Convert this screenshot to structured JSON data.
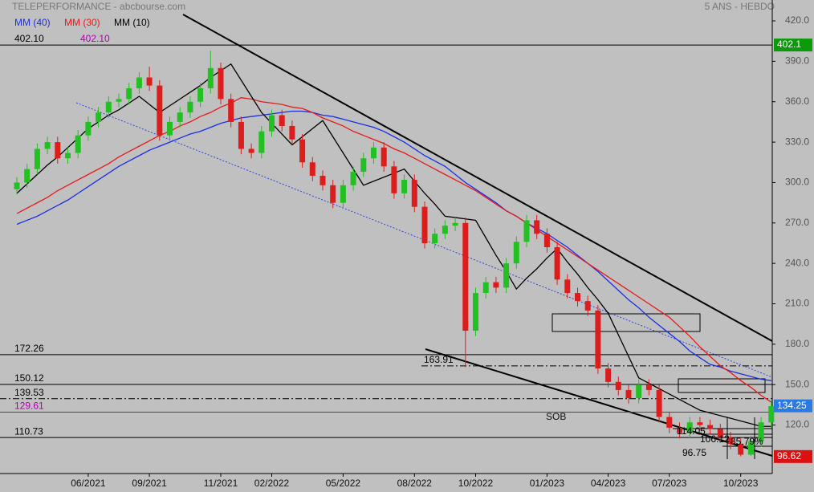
{
  "chart_data": {
    "type": "candlestick",
    "title": "TELEPERFORMANCE - abcbourse.com",
    "subtitle": "5 ANS - HEBDO",
    "ylim": [
      84,
      435.5
    ],
    "yticks": [
      {
        "value": 120,
        "label": "120.0"
      },
      {
        "value": 150,
        "label": "150.0"
      },
      {
        "value": 180,
        "label": "180.0"
      },
      {
        "value": 210,
        "label": "210.0"
      },
      {
        "value": 240,
        "label": "240.0"
      },
      {
        "value": 270,
        "label": "270.0"
      },
      {
        "value": 300,
        "label": "300.0"
      },
      {
        "value": 330,
        "label": "330.0"
      },
      {
        "value": 360,
        "label": "360.0"
      },
      {
        "value": 390,
        "label": "390.0"
      },
      {
        "value": 420,
        "label": "420.0"
      }
    ],
    "categories": [
      null,
      null,
      null,
      null,
      null,
      null,
      null,
      "06/2021",
      null,
      null,
      null,
      null,
      null,
      "09/2021",
      null,
      null,
      null,
      null,
      null,
      null,
      "11/2021",
      null,
      null,
      null,
      null,
      "02/2022",
      null,
      null,
      null,
      null,
      null,
      null,
      "05/2022",
      null,
      null,
      null,
      null,
      null,
      null,
      "08/2022",
      null,
      null,
      null,
      null,
      null,
      "10/2022",
      null,
      null,
      null,
      null,
      null,
      null,
      "01/2023",
      null,
      null,
      null,
      null,
      null,
      "04/2023",
      null,
      null,
      null,
      null,
      null,
      "07/2023",
      null,
      null,
      null,
      null,
      null,
      null,
      "10/2023",
      null,
      null,
      null
    ],
    "up_color": "#22c022",
    "down_color": "#dd1c1c",
    "ohlc": [
      [
        295,
        304,
        291,
        300
      ],
      [
        300,
        314,
        296,
        310
      ],
      [
        310,
        329,
        306,
        325
      ],
      [
        325,
        334,
        321,
        330
      ],
      [
        330,
        334,
        314,
        318
      ],
      [
        318,
        326,
        314,
        322
      ],
      [
        322,
        339,
        318,
        335
      ],
      [
        335,
        349,
        331,
        345
      ],
      [
        345,
        356,
        341,
        352
      ],
      [
        352,
        364,
        348,
        360
      ],
      [
        360,
        366,
        356,
        362
      ],
      [
        362,
        374,
        358,
        370
      ],
      [
        370,
        382,
        366,
        378
      ],
      [
        378,
        386,
        368,
        372
      ],
      [
        372,
        376,
        331,
        335
      ],
      [
        335,
        349,
        331,
        345
      ],
      [
        345,
        356,
        341,
        352
      ],
      [
        352,
        364,
        348,
        360
      ],
      [
        360,
        374,
        356,
        370
      ],
      [
        370,
        398,
        366,
        385
      ],
      [
        385,
        389,
        358,
        362
      ],
      [
        362,
        366,
        341,
        345
      ],
      [
        345,
        349,
        321,
        325
      ],
      [
        325,
        329,
        318,
        322
      ],
      [
        322,
        342,
        318,
        338
      ],
      [
        338,
        354,
        334,
        350
      ],
      [
        350,
        354,
        338,
        342
      ],
      [
        342,
        346,
        328,
        332
      ],
      [
        332,
        336,
        311,
        315
      ],
      [
        315,
        319,
        301,
        305
      ],
      [
        305,
        309,
        294,
        298
      ],
      [
        298,
        302,
        281,
        285
      ],
      [
        285,
        302,
        281,
        298
      ],
      [
        298,
        312,
        294,
        308
      ],
      [
        308,
        322,
        304,
        318
      ],
      [
        318,
        330,
        314,
        326
      ],
      [
        326,
        330,
        308,
        312
      ],
      [
        312,
        316,
        288,
        292
      ],
      [
        292,
        306,
        288,
        302
      ],
      [
        302,
        306,
        278,
        282
      ],
      [
        282,
        286,
        251,
        255
      ],
      [
        255,
        266,
        251,
        262
      ],
      [
        262,
        272,
        258,
        268
      ],
      [
        268,
        274,
        264,
        270
      ],
      [
        270,
        274,
        163,
        190
      ],
      [
        190,
        222,
        186,
        218
      ],
      [
        218,
        230,
        214,
        226
      ],
      [
        226,
        230,
        218,
        222
      ],
      [
        222,
        244,
        218,
        240
      ],
      [
        240,
        260,
        236,
        256
      ],
      [
        256,
        276,
        252,
        272
      ],
      [
        272,
        276,
        258,
        262
      ],
      [
        262,
        266,
        248,
        252
      ],
      [
        252,
        256,
        224,
        228
      ],
      [
        228,
        232,
        214,
        218
      ],
      [
        218,
        222,
        208,
        212
      ],
      [
        212,
        216,
        201,
        205
      ],
      [
        205,
        209,
        158,
        162
      ],
      [
        162,
        166,
        148,
        152
      ],
      [
        152,
        156,
        142,
        146
      ],
      [
        146,
        150,
        136,
        140
      ],
      [
        140,
        154,
        136,
        150
      ],
      [
        150,
        154,
        142,
        146
      ],
      [
        146,
        150,
        122,
        126
      ],
      [
        126,
        130,
        114,
        118
      ],
      [
        118,
        122,
        110,
        114
      ],
      [
        114,
        126,
        110,
        122
      ],
      [
        122,
        126,
        116,
        120
      ],
      [
        120,
        124,
        113,
        117
      ],
      [
        117,
        121,
        107,
        111
      ],
      [
        111,
        115,
        102,
        106
      ],
      [
        106,
        110,
        96.75,
        98
      ],
      [
        98,
        112,
        97,
        108
      ],
      [
        108,
        126,
        104,
        122
      ],
      [
        122,
        138,
        118,
        134
      ]
    ],
    "series": [
      {
        "name": "MM (40)",
        "color": "#1a2ee6",
        "values": [
          269,
          272,
          275,
          279,
          283,
          287,
          292,
          297,
          302,
          307,
          312,
          316,
          320,
          324,
          327,
          330,
          333,
          336,
          338,
          341,
          344,
          346,
          348,
          349,
          350,
          351,
          352,
          353,
          353,
          352,
          350,
          349,
          347,
          345,
          343,
          341,
          338,
          334,
          330,
          325,
          320,
          316,
          312,
          306,
          300,
          295,
          290,
          285,
          279,
          275,
          270,
          266,
          262,
          257,
          252,
          246,
          240,
          234,
          227,
          220,
          213,
          207,
          200,
          194,
          188,
          182,
          175,
          170,
          165,
          163,
          160,
          158,
          156,
          154,
          153
        ]
      },
      {
        "name": "MM (30)",
        "color": "#e61a1a",
        "values": [
          277,
          281,
          285,
          289,
          294,
          298,
          302,
          306,
          310,
          314,
          319,
          323,
          327,
          331,
          335,
          338,
          342,
          345,
          349,
          352,
          356,
          359,
          363,
          362,
          360,
          359,
          358,
          356,
          355,
          352,
          348,
          345,
          342,
          338,
          335,
          332,
          329,
          325,
          322,
          318,
          314,
          310,
          306,
          302,
          298,
          294,
          289,
          284,
          279,
          275,
          270,
          265,
          260,
          255,
          250,
          245,
          240,
          235,
          230,
          225,
          220,
          215,
          210,
          205,
          200,
          193,
          186,
          178,
          171,
          164,
          159,
          153,
          148,
          142,
          137
        ]
      },
      {
        "name": "MM (10)",
        "color": "#000000",
        "values": [
          292,
          299,
          306,
          313,
          319,
          326,
          333,
          340,
          345,
          350,
          354,
          359,
          364,
          358,
          352,
          357,
          362,
          367,
          372,
          378,
          383,
          388,
          376,
          364,
          352,
          344,
          336,
          328,
          334,
          340,
          346,
          334,
          322,
          310,
          298,
          301,
          304,
          307,
          310,
          301,
          292,
          284,
          275,
          274,
          273,
          272,
          259,
          246,
          234,
          221,
          229,
          236,
          244,
          251,
          241,
          232,
          222,
          213,
          203,
          187,
          171,
          155,
          151,
          147,
          143,
          139,
          135,
          131,
          129,
          127,
          125,
          123,
          121,
          119,
          119
        ]
      }
    ],
    "levels": [
      {
        "value": 402.1,
        "label": "402.10",
        "color": "#000000",
        "style": "solid"
      },
      {
        "value": 172.26,
        "label": "172.26",
        "color": "#000000",
        "style": "solid"
      },
      {
        "value": 163.91,
        "label": "163.91",
        "color": "#000000",
        "style": "dashdot"
      },
      {
        "value": 150.12,
        "label": "150.12",
        "color": "#000000",
        "style": "solid"
      },
      {
        "value": 139.53,
        "label": "139.53",
        "color": "#000000",
        "style": "dashdot"
      },
      {
        "value": 129.61,
        "label": "129.61",
        "color": "#b000b0",
        "style": "solid"
      },
      {
        "value": 110.73,
        "label": "110.73",
        "color": "#000000",
        "style": "solid"
      }
    ],
    "level_note": {
      "value": 402.1,
      "label": "402.10",
      "color": "#b000b0"
    },
    "price_tags": [
      {
        "value": 402.1,
        "label": "402.1",
        "color": "#0a9a0a"
      },
      {
        "value": 134.25,
        "color": "#2a7ae0"
      },
      {
        "value": 96.62,
        "color": "#dd1010"
      }
    ],
    "annotations": [
      "SOB",
      "114.05",
      "106.12",
      "85.79%",
      "96.75"
    ]
  }
}
